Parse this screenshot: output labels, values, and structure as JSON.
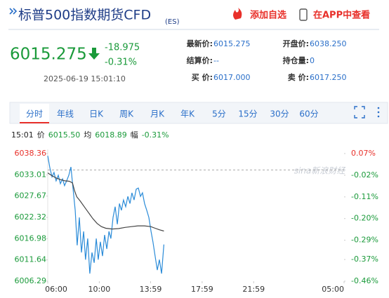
{
  "header": {
    "title": "标普500指数期货CFD",
    "code": "(ES)",
    "actions": [
      "添加自选",
      "在APP中查看"
    ]
  },
  "quote": {
    "price": "6015.275",
    "change": "-18.975",
    "change_pct": "-0.31%",
    "time": "2025-06-19 15:01:10",
    "fields": [
      {
        "label": "最新价:",
        "value": "6015.275"
      },
      {
        "label": "开盘价:",
        "value": "6038.250"
      },
      {
        "label": "结算价:",
        "value": "--"
      },
      {
        "label": "持仓量:",
        "value": "0"
      },
      {
        "label": "买 价:",
        "value": "6017.000"
      },
      {
        "label": "卖 价:",
        "value": "6017.250"
      }
    ]
  },
  "tabs": [
    "分时",
    "年线",
    "日K",
    "周K",
    "月K",
    "年K",
    "5分",
    "15分",
    "30分",
    "60分"
  ],
  "info": {
    "time": "15:01",
    "price_label": "价",
    "price": "6015.50",
    "avg_label": "均",
    "avg": "6018.89",
    "pct_label": "幅",
    "pct": "-0.31%"
  },
  "chart_data": {
    "type": "line",
    "watermark": "sina新浪财经",
    "xlim": [
      0,
      1380
    ],
    "xticks": [
      {
        "value": 0,
        "label": "06:00"
      },
      {
        "value": 240,
        "label": "10:00"
      },
      {
        "value": 479,
        "label": "13:59"
      },
      {
        "value": 719,
        "label": "17:59"
      },
      {
        "value": 959,
        "label": "21:59"
      },
      {
        "value": 1380,
        "label": "05:00"
      }
    ],
    "ylim": [
      6006.29,
      6038.36
    ],
    "yticks": [
      6038.36,
      6033.01,
      6027.67,
      6022.32,
      6016.98,
      6011.64,
      6006.29
    ],
    "y2lim": [
      -0.46,
      0.07
    ],
    "y2ticks": [
      {
        "value": 0.07,
        "label": "0.07%"
      },
      {
        "value": -0.02,
        "label": "-0.02%"
      },
      {
        "value": -0.11,
        "label": "-0.11%"
      },
      {
        "value": -0.2,
        "label": "-0.20%"
      },
      {
        "value": -0.29,
        "label": "-0.29%"
      },
      {
        "value": -0.37,
        "label": "-0.37%"
      },
      {
        "value": -0.46,
        "label": "-0.46%"
      }
    ],
    "reference_line": 6034.25,
    "up_color": "#e8302a",
    "down_color": "#1a9a3a",
    "series": [
      {
        "color": "#2a8bd8",
        "x": [
          0,
          10,
          20,
          29,
          39,
          49,
          59,
          69,
          78,
          88,
          98,
          108,
          118,
          128,
          137,
          147,
          157,
          167,
          176,
          186,
          196,
          206,
          216,
          226,
          235,
          245,
          255,
          265,
          275,
          285,
          294,
          304,
          314,
          324,
          334,
          343,
          353,
          363,
          373,
          383,
          392,
          402,
          412,
          422,
          432,
          441,
          451,
          461,
          471,
          481,
          490,
          500,
          510,
          520,
          530,
          541
        ],
        "values": [
          6037.8,
          6034.7,
          6032.5,
          6033.6,
          6031.5,
          6032.9,
          6030.8,
          6032.0,
          6030.3,
          6031.5,
          6032.9,
          6035.0,
          6029.4,
          6024.1,
          6015.3,
          6022.3,
          6013.5,
          6018.8,
          6011.7,
          6017.0,
          6008.2,
          6013.5,
          6010.9,
          6017.0,
          6011.7,
          6016.2,
          6012.6,
          6017.9,
          6014.4,
          6018.8,
          6017.0,
          6022.3,
          6025.0,
          6020.6,
          6025.8,
          6024.1,
          6026.7,
          6025.0,
          6027.6,
          6025.8,
          6028.5,
          6026.7,
          6029.4,
          6029.7,
          6027.6,
          6028.5,
          6025.8,
          6024.1,
          6022.3,
          6018.8,
          6016.2,
          6012.6,
          6009.1,
          6011.7,
          6008.2,
          6015.5
        ]
      },
      {
        "color": "#444444",
        "x": [
          0,
          20,
          40,
          60,
          80,
          100,
          115,
          125,
          135,
          150,
          170,
          190,
          210,
          230,
          250,
          270,
          300,
          330,
          360,
          390,
          420,
          450,
          480,
          500,
          520,
          541
        ],
        "values": [
          6033.5,
          6032.8,
          6032.2,
          6031.8,
          6031.5,
          6031.4,
          6031.0,
          6029.0,
          6027.5,
          6026.5,
          6025.0,
          6023.5,
          6022.0,
          6020.8,
          6020.0,
          6019.6,
          6019.4,
          6019.5,
          6019.8,
          6020.0,
          6020.2,
          6020.2,
          6020.0,
          6019.6,
          6019.2,
          6018.89
        ]
      }
    ]
  }
}
